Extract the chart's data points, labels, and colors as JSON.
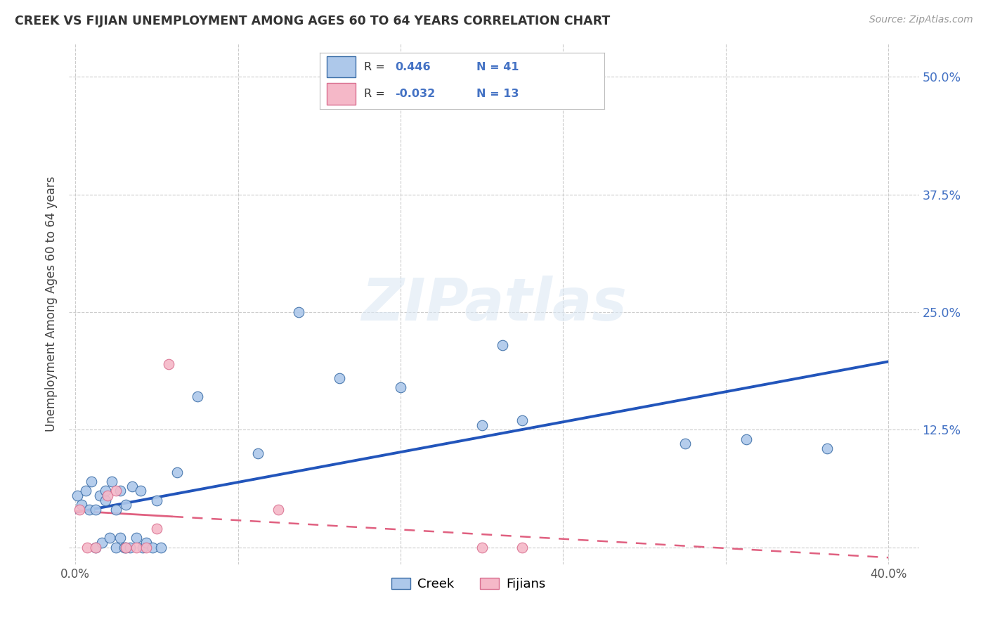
{
  "title": "CREEK VS FIJIAN UNEMPLOYMENT AMONG AGES 60 TO 64 YEARS CORRELATION CHART",
  "source": "Source: ZipAtlas.com",
  "ylabel": "Unemployment Among Ages 60 to 64 years",
  "xlim": [
    -0.003,
    0.415
  ],
  "ylim": [
    -0.018,
    0.535
  ],
  "ytick_positions": [
    0.0,
    0.125,
    0.25,
    0.375,
    0.5
  ],
  "yticklabels_right": [
    "",
    "12.5%",
    "25.0%",
    "37.5%",
    "50.0%"
  ],
  "xtick_positions": [
    0.0,
    0.08,
    0.16,
    0.24,
    0.32,
    0.4
  ],
  "xticklabels": [
    "0.0%",
    "",
    "",
    "",
    "",
    "40.0%"
  ],
  "grid_color": "#cccccc",
  "background_color": "#ffffff",
  "creek_face_color": "#adc8ea",
  "creek_edge_color": "#3d6fa8",
  "fijian_face_color": "#f5b8c8",
  "fijian_edge_color": "#d97090",
  "creek_line_color": "#2255bb",
  "fijian_line_color": "#e06080",
  "creek_R": "0.446",
  "creek_N": "41",
  "fijian_R": "-0.032",
  "fijian_N": "13",
  "creek_x": [
    0.001,
    0.003,
    0.005,
    0.007,
    0.008,
    0.01,
    0.01,
    0.012,
    0.013,
    0.015,
    0.015,
    0.017,
    0.018,
    0.02,
    0.02,
    0.022,
    0.022,
    0.024,
    0.025,
    0.025,
    0.027,
    0.028,
    0.03,
    0.032,
    0.033,
    0.035,
    0.038,
    0.04,
    0.042,
    0.05,
    0.06,
    0.09,
    0.11,
    0.13,
    0.16,
    0.2,
    0.21,
    0.22,
    0.3,
    0.33,
    0.37
  ],
  "creek_y": [
    0.055,
    0.045,
    0.06,
    0.04,
    0.07,
    0.04,
    0.0,
    0.055,
    0.005,
    0.05,
    0.06,
    0.01,
    0.07,
    0.04,
    0.0,
    0.01,
    0.06,
    0.0,
    0.045,
    0.0,
    0.0,
    0.065,
    0.01,
    0.06,
    0.0,
    0.005,
    0.0,
    0.05,
    0.0,
    0.08,
    0.16,
    0.1,
    0.25,
    0.18,
    0.17,
    0.13,
    0.215,
    0.135,
    0.11,
    0.115,
    0.105
  ],
  "fijian_x": [
    0.002,
    0.006,
    0.01,
    0.016,
    0.02,
    0.025,
    0.03,
    0.035,
    0.04,
    0.046,
    0.1,
    0.2,
    0.22
  ],
  "fijian_y": [
    0.04,
    0.0,
    0.0,
    0.055,
    0.06,
    0.0,
    0.0,
    0.0,
    0.02,
    0.195,
    0.04,
    0.0,
    0.0
  ],
  "legend_label_creek": "Creek",
  "legend_label_fijian": "Fijians"
}
